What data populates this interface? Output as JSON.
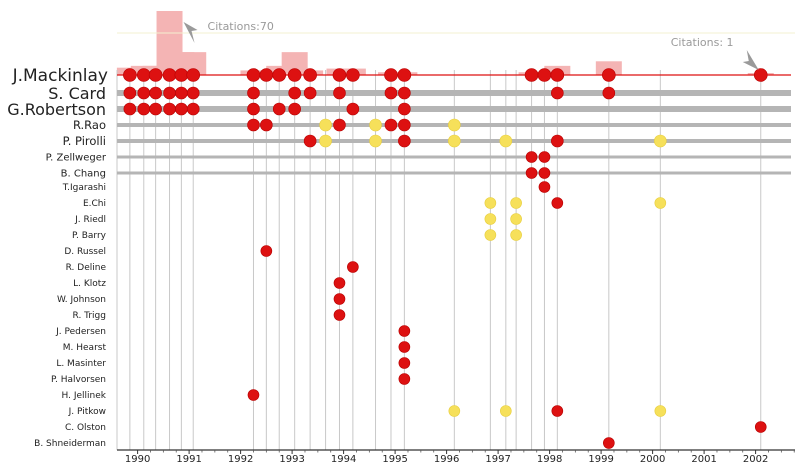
{
  "chart_data": {
    "type": "scatter",
    "focus_author": "J.Mackinlay",
    "colors": {
      "focus": "#dd1111",
      "coauthor_pub": "#dd1111",
      "other_pub": "#f6e05a",
      "citation_bar": "#f4b4b4",
      "timeline": "#b5b5b5",
      "grid": "#c8c8c8",
      "citation_callout": "#9a9a9a"
    },
    "x_axis": {
      "ticks": [
        "1990",
        "1991",
        "1992",
        "1993",
        "1994",
        "1995",
        "1996",
        "1997",
        "1998",
        "1999",
        "2000",
        "2001",
        "2002"
      ],
      "range": [
        1989.6,
        2002.2
      ]
    },
    "pub_dates": [
      1989.85,
      1990.12,
      1990.35,
      1990.62,
      1990.85,
      1991.08,
      1992.25,
      1992.5,
      1992.75,
      1993.05,
      1993.35,
      1993.65,
      1993.92,
      1994.18,
      1994.62,
      1994.92,
      1995.18,
      1996.15,
      1996.85,
      1997.15,
      1997.35,
      1997.65,
      1997.9,
      1998.15,
      1999.15,
      2000.15,
      2002.1
    ],
    "citation_bars": [
      {
        "year": 1989.85,
        "value": 8
      },
      {
        "year": 1990.12,
        "value": 10
      },
      {
        "year": 1990.35,
        "value": 10
      },
      {
        "year": 1990.62,
        "value": 70
      },
      {
        "year": 1990.85,
        "value": 25
      },
      {
        "year": 1991.08,
        "value": 25
      },
      {
        "year": 1992.25,
        "value": 5
      },
      {
        "year": 1992.5,
        "value": 5
      },
      {
        "year": 1992.75,
        "value": 10
      },
      {
        "year": 1993.05,
        "value": 25
      },
      {
        "year": 1993.35,
        "value": 5
      },
      {
        "year": 1993.92,
        "value": 7
      },
      {
        "year": 1994.18,
        "value": 7
      },
      {
        "year": 1994.92,
        "value": 3
      },
      {
        "year": 1995.18,
        "value": 3
      },
      {
        "year": 1997.65,
        "value": 3
      },
      {
        "year": 1997.9,
        "value": 3
      },
      {
        "year": 1998.15,
        "value": 10
      },
      {
        "year": 1999.15,
        "value": 15
      },
      {
        "year": 2002.1,
        "value": 1
      }
    ],
    "citation_callouts": [
      {
        "text": "Citations:70",
        "year": 1990.62
      },
      {
        "text": "Citations: 1",
        "year": 2002.1
      }
    ],
    "authors": [
      {
        "name": "J.Mackinlay",
        "style": "focus",
        "pubs": [
          [
            1989.85,
            "r"
          ],
          [
            1990.12,
            "r"
          ],
          [
            1990.35,
            "r"
          ],
          [
            1990.62,
            "r"
          ],
          [
            1990.85,
            "r"
          ],
          [
            1991.08,
            "r"
          ],
          [
            1992.25,
            "r"
          ],
          [
            1992.5,
            "r"
          ],
          [
            1992.75,
            "r"
          ],
          [
            1993.05,
            "r"
          ],
          [
            1993.35,
            "r"
          ],
          [
            1993.92,
            "r"
          ],
          [
            1994.18,
            "r"
          ],
          [
            1994.92,
            "r"
          ],
          [
            1995.18,
            "r"
          ],
          [
            1997.65,
            "r"
          ],
          [
            1997.9,
            "r"
          ],
          [
            1998.15,
            "r"
          ],
          [
            1999.15,
            "r"
          ],
          [
            2002.1,
            "r"
          ]
        ]
      },
      {
        "name": "S. Card",
        "style": "major",
        "pubs": [
          [
            1989.85,
            "r"
          ],
          [
            1990.12,
            "r"
          ],
          [
            1990.35,
            "r"
          ],
          [
            1990.62,
            "r"
          ],
          [
            1990.85,
            "r"
          ],
          [
            1991.08,
            "r"
          ],
          [
            1992.25,
            "r"
          ],
          [
            1993.05,
            "r"
          ],
          [
            1993.35,
            "r"
          ],
          [
            1993.92,
            "r"
          ],
          [
            1994.92,
            "r"
          ],
          [
            1995.18,
            "r"
          ],
          [
            1998.15,
            "r"
          ],
          [
            1999.15,
            "r"
          ]
        ]
      },
      {
        "name": "G.Robertson",
        "style": "major",
        "pubs": [
          [
            1989.85,
            "r"
          ],
          [
            1990.12,
            "r"
          ],
          [
            1990.35,
            "r"
          ],
          [
            1990.62,
            "r"
          ],
          [
            1990.85,
            "r"
          ],
          [
            1991.08,
            "r"
          ],
          [
            1992.25,
            "r"
          ],
          [
            1992.75,
            "r"
          ],
          [
            1993.05,
            "r"
          ],
          [
            1994.18,
            "r"
          ],
          [
            1995.18,
            "r"
          ]
        ]
      },
      {
        "name": "R.Rao",
        "style": "mid",
        "pubs": [
          [
            1992.25,
            "r"
          ],
          [
            1992.5,
            "r"
          ],
          [
            1993.65,
            "y"
          ],
          [
            1993.92,
            "r"
          ],
          [
            1994.62,
            "y"
          ],
          [
            1994.92,
            "r"
          ],
          [
            1995.18,
            "r"
          ],
          [
            1996.15,
            "y"
          ]
        ]
      },
      {
        "name": "P. Pirolli",
        "style": "mid",
        "pubs": [
          [
            1993.35,
            "r"
          ],
          [
            1993.65,
            "y"
          ],
          [
            1994.62,
            "y"
          ],
          [
            1995.18,
            "r"
          ],
          [
            1996.15,
            "y"
          ],
          [
            1997.15,
            "y"
          ],
          [
            1998.15,
            "r"
          ],
          [
            2000.15,
            "y"
          ]
        ]
      },
      {
        "name": "P. Zellweger",
        "style": "small",
        "pubs": [
          [
            1997.65,
            "r"
          ],
          [
            1997.9,
            "r"
          ]
        ]
      },
      {
        "name": "B. Chang",
        "style": "small",
        "pubs": [
          [
            1997.65,
            "r"
          ],
          [
            1997.9,
            "r"
          ]
        ]
      },
      {
        "name": "T.Igarashi",
        "style": "none",
        "pubs": [
          [
            1997.9,
            "r"
          ]
        ]
      },
      {
        "name": "E.Chi",
        "style": "none",
        "pubs": [
          [
            1996.85,
            "y"
          ],
          [
            1997.35,
            "y"
          ],
          [
            1998.15,
            "r"
          ],
          [
            2000.15,
            "y"
          ]
        ]
      },
      {
        "name": "J. Riedl",
        "style": "none",
        "pubs": [
          [
            1996.85,
            "y"
          ],
          [
            1997.35,
            "y"
          ]
        ]
      },
      {
        "name": "P. Barry",
        "style": "none",
        "pubs": [
          [
            1996.85,
            "y"
          ],
          [
            1997.35,
            "y"
          ]
        ]
      },
      {
        "name": "D. Russel",
        "style": "none",
        "pubs": [
          [
            1992.5,
            "r"
          ]
        ]
      },
      {
        "name": "R. Deline",
        "style": "none",
        "pubs": [
          [
            1994.18,
            "r"
          ]
        ]
      },
      {
        "name": "L. Klotz",
        "style": "none",
        "pubs": [
          [
            1993.92,
            "r"
          ]
        ]
      },
      {
        "name": "W. Johnson",
        "style": "none",
        "pubs": [
          [
            1993.92,
            "r"
          ]
        ]
      },
      {
        "name": "R. Trigg",
        "style": "none",
        "pubs": [
          [
            1993.92,
            "r"
          ]
        ]
      },
      {
        "name": "J. Pedersen",
        "style": "none",
        "pubs": [
          [
            1995.18,
            "r"
          ]
        ]
      },
      {
        "name": "M. Hearst",
        "style": "none",
        "pubs": [
          [
            1995.18,
            "r"
          ]
        ]
      },
      {
        "name": "L. Masinter",
        "style": "none",
        "pubs": [
          [
            1995.18,
            "r"
          ]
        ]
      },
      {
        "name": "P. Halvorsen",
        "style": "none",
        "pubs": [
          [
            1995.18,
            "r"
          ]
        ]
      },
      {
        "name": "H. Jellinek",
        "style": "none",
        "pubs": [
          [
            1992.25,
            "r"
          ]
        ]
      },
      {
        "name": "J. Pitkow",
        "style": "none",
        "pubs": [
          [
            1996.15,
            "y"
          ],
          [
            1997.15,
            "y"
          ],
          [
            1998.15,
            "r"
          ],
          [
            2000.15,
            "y"
          ]
        ]
      },
      {
        "name": "C. Olston",
        "style": "none",
        "pubs": [
          [
            2002.1,
            "r"
          ]
        ]
      },
      {
        "name": "B. Shneiderman",
        "style": "none",
        "pubs": [
          [
            1999.15,
            "r"
          ]
        ]
      }
    ]
  }
}
